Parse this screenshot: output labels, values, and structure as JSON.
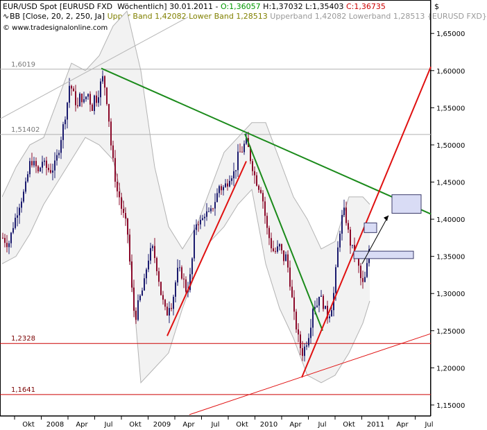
{
  "header": {
    "line1_title": "EUR/USD Spot [EURUSD FXD  Wöchentlich] 30.01.2011 - ",
    "line1_open": "O:1,36057",
    "line1_hl": " H:1,37032 L:1,35403 ",
    "line1_close": "C:1,36735",
    "line2_bb": "BB [Close, 20, 2, 250, Ja] ",
    "line2_upper": "Upper Band 1,42082 Lower Band 1,28513",
    "line2_rest": " Upperband 1,42082 Lowerband 1,28513 {EURUSD FXD}",
    "line3_copyright": "© www.tradesignalonline.com",
    "currency_symbol": "$"
  },
  "colors": {
    "open": "#009900",
    "close": "#cc0000",
    "bb_text": "#808000",
    "bb_rest": "#999999",
    "candle_up": "#1a1a6e",
    "candle_down": "#8b0a2a",
    "band": "#b3b3b3",
    "trend_green": "#1a8a1a",
    "trend_red": "#e01010",
    "hline_red": "#cc0000",
    "hline_gray": "#b0b0b0",
    "box_fill": "#d9dcf5",
    "box_stroke": "#3a3a6a"
  },
  "chart_data": {
    "type": "candlestick",
    "timeframe": "weekly",
    "y_axis": {
      "ticks": [
        "1,65000",
        "1,60000",
        "1,55000",
        "1,50000",
        "1,45000",
        "1,40000",
        "1,35000",
        "1,30000",
        "1,25000",
        "1,20000",
        "1,15000"
      ],
      "ylim": [
        1.135,
        1.695
      ]
    },
    "x_axis": {
      "ticks": [
        "Okt",
        "2008",
        "Apr",
        "Jul",
        "Okt",
        "2009",
        "Apr",
        "Jul",
        "Okt",
        "2010",
        "Apr",
        "Jul",
        "Okt",
        "2011",
        "Apr",
        "Jul"
      ],
      "range": [
        "2007-08",
        "2011-08"
      ]
    },
    "horizontal_levels": [
      {
        "value": 1.6019,
        "label": "1,6019",
        "color": "gray"
      },
      {
        "value": 1.51402,
        "label": "1,51402",
        "color": "gray"
      },
      {
        "value": 1.2328,
        "label": "1,2328",
        "color": "red"
      },
      {
        "value": 1.1641,
        "label": "1,1641",
        "color": "red"
      }
    ],
    "close_path_points": [
      [
        0,
        1.375
      ],
      [
        8,
        1.365
      ],
      [
        16,
        1.395
      ],
      [
        24,
        1.42
      ],
      [
        32,
        1.44
      ],
      [
        40,
        1.48
      ],
      [
        48,
        1.47
      ],
      [
        52,
        1.46
      ],
      [
        56,
        1.48
      ],
      [
        62,
        1.47
      ],
      [
        68,
        1.465
      ],
      [
        74,
        1.47
      ],
      [
        80,
        1.49
      ],
      [
        84,
        1.51
      ],
      [
        88,
        1.53
      ],
      [
        92,
        1.55
      ],
      [
        96,
        1.58
      ],
      [
        100,
        1.575
      ],
      [
        104,
        1.56
      ],
      [
        108,
        1.55
      ],
      [
        112,
        1.57
      ],
      [
        116,
        1.555
      ],
      [
        120,
        1.565
      ],
      [
        124,
        1.57
      ],
      [
        128,
        1.545
      ],
      [
        132,
        1.565
      ],
      [
        136,
        1.56
      ],
      [
        140,
        1.58
      ],
      [
        144,
        1.59
      ],
      [
        148,
        1.575
      ],
      [
        152,
        1.545
      ],
      [
        156,
        1.5
      ],
      [
        160,
        1.47
      ],
      [
        164,
        1.44
      ],
      [
        168,
        1.43
      ],
      [
        172,
        1.41
      ],
      [
        176,
        1.4
      ],
      [
        180,
        1.38
      ],
      [
        184,
        1.33
      ],
      [
        188,
        1.28
      ],
      [
        192,
        1.27
      ],
      [
        196,
        1.29
      ],
      [
        200,
        1.3
      ],
      [
        204,
        1.315
      ],
      [
        208,
        1.34
      ],
      [
        212,
        1.355
      ],
      [
        216,
        1.36
      ],
      [
        220,
        1.345
      ],
      [
        224,
        1.325
      ],
      [
        228,
        1.3
      ],
      [
        232,
        1.285
      ],
      [
        236,
        1.27
      ],
      [
        240,
        1.285
      ],
      [
        244,
        1.285
      ],
      [
        248,
        1.31
      ],
      [
        252,
        1.33
      ],
      [
        256,
        1.33
      ],
      [
        260,
        1.32
      ],
      [
        264,
        1.305
      ],
      [
        268,
        1.31
      ],
      [
        272,
        1.335
      ],
      [
        276,
        1.38
      ],
      [
        280,
        1.4
      ],
      [
        284,
        1.395
      ],
      [
        288,
        1.4
      ],
      [
        292,
        1.41
      ],
      [
        296,
        1.405
      ],
      [
        300,
        1.41
      ],
      [
        304,
        1.42
      ],
      [
        308,
        1.43
      ],
      [
        312,
        1.445
      ],
      [
        316,
        1.44
      ],
      [
        320,
        1.445
      ],
      [
        324,
        1.45
      ],
      [
        328,
        1.46
      ],
      [
        332,
        1.46
      ],
      [
        336,
        1.47
      ],
      [
        340,
        1.49
      ],
      [
        344,
        1.49
      ],
      [
        348,
        1.5
      ],
      [
        352,
        1.505
      ],
      [
        356,
        1.485
      ],
      [
        360,
        1.47
      ],
      [
        364,
        1.455
      ],
      [
        368,
        1.445
      ],
      [
        372,
        1.44
      ],
      [
        376,
        1.42
      ],
      [
        380,
        1.39
      ],
      [
        384,
        1.375
      ],
      [
        388,
        1.36
      ],
      [
        392,
        1.355
      ],
      [
        396,
        1.36
      ],
      [
        400,
        1.365
      ],
      [
        404,
        1.345
      ],
      [
        408,
        1.35
      ],
      [
        412,
        1.33
      ],
      [
        416,
        1.3
      ],
      [
        420,
        1.27
      ],
      [
        424,
        1.25
      ],
      [
        428,
        1.23
      ],
      [
        432,
        1.22
      ],
      [
        436,
        1.23
      ],
      [
        440,
        1.24
      ],
      [
        444,
        1.26
      ],
      [
        448,
        1.29
      ],
      [
        452,
        1.28
      ],
      [
        456,
        1.3
      ],
      [
        460,
        1.29
      ],
      [
        464,
        1.28
      ],
      [
        468,
        1.27
      ],
      [
        472,
        1.275
      ],
      [
        476,
        1.29
      ],
      [
        480,
        1.33
      ],
      [
        484,
        1.37
      ],
      [
        488,
        1.4
      ],
      [
        492,
        1.41
      ],
      [
        496,
        1.395
      ],
      [
        500,
        1.37
      ],
      [
        504,
        1.36
      ],
      [
        508,
        1.355
      ],
      [
        512,
        1.34
      ],
      [
        516,
        1.32
      ],
      [
        520,
        1.31
      ],
      [
        524,
        1.33
      ],
      [
        528,
        1.36
      ],
      [
        532,
        1.37
      ]
    ],
    "band_upper_points": [
      [
        0,
        1.43
      ],
      [
        20,
        1.47
      ],
      [
        40,
        1.5
      ],
      [
        60,
        1.51
      ],
      [
        80,
        1.56
      ],
      [
        100,
        1.61
      ],
      [
        120,
        1.6
      ],
      [
        140,
        1.62
      ],
      [
        160,
        1.66
      ],
      [
        180,
        1.68
      ],
      [
        200,
        1.6
      ],
      [
        220,
        1.47
      ],
      [
        240,
        1.39
      ],
      [
        260,
        1.36
      ],
      [
        280,
        1.39
      ],
      [
        300,
        1.44
      ],
      [
        320,
        1.49
      ],
      [
        340,
        1.51
      ],
      [
        360,
        1.53
      ],
      [
        380,
        1.53
      ],
      [
        400,
        1.48
      ],
      [
        420,
        1.43
      ],
      [
        440,
        1.4
      ],
      [
        460,
        1.36
      ],
      [
        480,
        1.37
      ],
      [
        500,
        1.43
      ],
      [
        520,
        1.43
      ],
      [
        530,
        1.42
      ]
    ],
    "band_lower_points": [
      [
        0,
        1.34
      ],
      [
        20,
        1.35
      ],
      [
        40,
        1.38
      ],
      [
        60,
        1.42
      ],
      [
        80,
        1.45
      ],
      [
        100,
        1.48
      ],
      [
        120,
        1.51
      ],
      [
        140,
        1.5
      ],
      [
        160,
        1.48
      ],
      [
        180,
        1.4
      ],
      [
        200,
        1.18
      ],
      [
        220,
        1.2
      ],
      [
        240,
        1.22
      ],
      [
        260,
        1.28
      ],
      [
        280,
        1.33
      ],
      [
        300,
        1.37
      ],
      [
        320,
        1.39
      ],
      [
        340,
        1.42
      ],
      [
        360,
        1.44
      ],
      [
        380,
        1.34
      ],
      [
        400,
        1.28
      ],
      [
        420,
        1.24
      ],
      [
        440,
        1.19
      ],
      [
        460,
        1.18
      ],
      [
        480,
        1.19
      ],
      [
        500,
        1.22
      ],
      [
        520,
        1.26
      ],
      [
        530,
        1.29
      ]
    ]
  }
}
